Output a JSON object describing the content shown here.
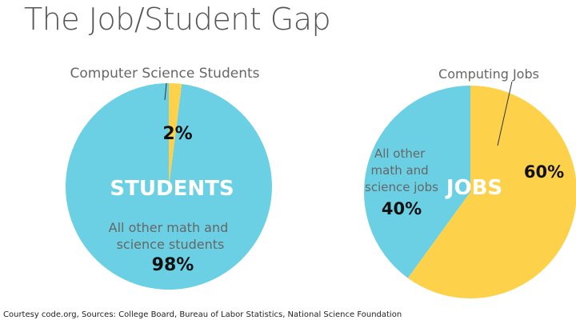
{
  "title": "The Job/Student Gap",
  "footer": "Courtesy code.org, Sources: College Board, Bureau of Labor Statistics, National Science Foundation",
  "colors": {
    "blue": "#6bd0e3",
    "yellow": "#fdd24a",
    "text": "#111111",
    "muted": "#666666"
  },
  "chart_data": [
    {
      "type": "pie",
      "center_label": "STUDENTS",
      "slices": [
        {
          "name": "Computer Science Students",
          "value": 2,
          "label": "2%",
          "color": "#fdd24a"
        },
        {
          "name": "All other math and science students",
          "value": 98,
          "label": "98%",
          "color": "#6bd0e3"
        }
      ]
    },
    {
      "type": "pie",
      "center_label": "JOBS",
      "slices": [
        {
          "name": "Computing Jobs",
          "value": 60,
          "label": "60%",
          "color": "#fdd24a"
        },
        {
          "name": "All other math and science jobs",
          "value": 40,
          "label": "40%",
          "color": "#6bd0e3"
        }
      ]
    }
  ]
}
